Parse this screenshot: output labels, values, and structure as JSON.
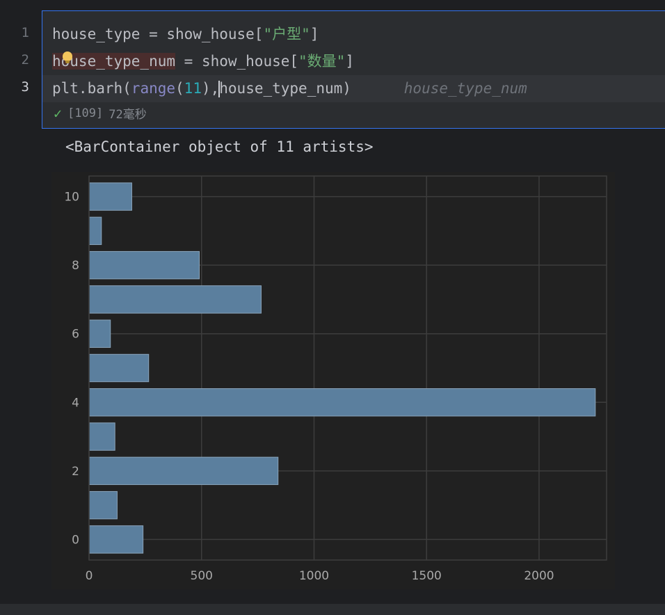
{
  "editor": {
    "line_numbers": [
      "1",
      "2",
      "3"
    ],
    "lines": [
      {
        "parts": [
          {
            "t": "house_type = show_house[",
            "c": ""
          },
          {
            "t": "\"户型\"",
            "c": "str"
          },
          {
            "t": "]",
            "c": ""
          }
        ]
      },
      {
        "parts": [
          {
            "t": "house_type_num",
            "c": "hl-word"
          },
          {
            "t": " = show_house[",
            "c": ""
          },
          {
            "t": "\"数量\"",
            "c": "str"
          },
          {
            "t": "]",
            "c": ""
          }
        ]
      },
      {
        "parts": [
          {
            "t": "plt.barh(",
            "c": ""
          },
          {
            "t": "range",
            "c": "builtin"
          },
          {
            "t": "(",
            "c": ""
          },
          {
            "t": "11",
            "c": "num"
          },
          {
            "t": "),",
            "c": ""
          },
          {
            "t": "CARET",
            "c": "caret"
          },
          {
            "t": "house_type_num)",
            "c": ""
          },
          {
            "t": "      house_type_num",
            "c": "hint"
          }
        ]
      }
    ],
    "status": {
      "exec_count": "[109]",
      "duration": "72毫秒"
    }
  },
  "output": {
    "repr": "<BarContainer object of 11 artists>"
  },
  "colors": {
    "bar_fill": "#5b7f9e",
    "bar_edge": "#8aa4ba",
    "grid": "#3d3d3d",
    "axes_bg": "#212121",
    "tick_text": "#a9a9a9"
  },
  "chart_data": {
    "type": "bar",
    "orientation": "horizontal",
    "categories": [
      0,
      1,
      2,
      3,
      4,
      5,
      6,
      7,
      8,
      9,
      10
    ],
    "values": [
      240,
      125,
      840,
      115,
      2250,
      265,
      95,
      765,
      490,
      55,
      190
    ],
    "xlim": [
      0,
      2300
    ],
    "ylim": [
      -0.6,
      10.6
    ],
    "xticks": [
      0,
      500,
      1000,
      1500,
      2000
    ],
    "yticks": [
      0,
      2,
      4,
      6,
      8,
      10
    ],
    "grid": true,
    "title": "",
    "xlabel": "",
    "ylabel": ""
  }
}
